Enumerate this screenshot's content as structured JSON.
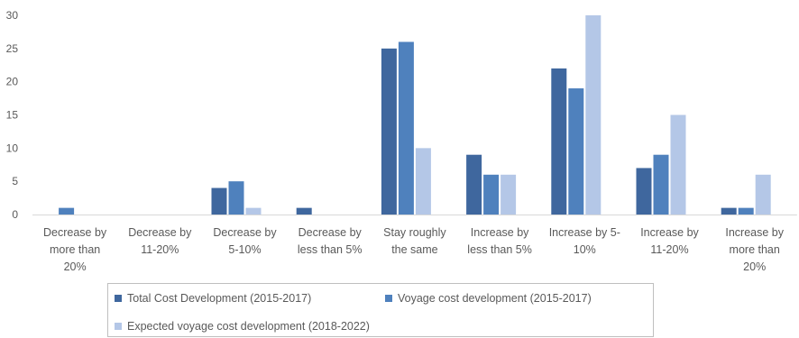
{
  "chart_data": {
    "type": "bar",
    "title": "",
    "xlabel": "",
    "ylabel": "",
    "ylim": [
      0,
      30
    ],
    "yticks": [
      0,
      5,
      10,
      15,
      20,
      25,
      30
    ],
    "grid": false,
    "legend_position": "bottom",
    "categories": [
      [
        "Decrease by",
        "more than",
        "20%"
      ],
      [
        "Decrease by",
        "11-20%"
      ],
      [
        "Decrease by",
        "5-10%"
      ],
      [
        "Decrease by",
        "less than 5%"
      ],
      [
        "Stay roughly",
        "the same"
      ],
      [
        "Increase by",
        "less than 5%"
      ],
      [
        "Increase by 5-",
        "10%"
      ],
      [
        "Increase by",
        "11-20%"
      ],
      [
        "Increase by",
        "more than",
        "20%"
      ]
    ],
    "series": [
      {
        "name": "Total Cost Development (2015-2017)",
        "color": "#3f679e",
        "values": [
          0,
          0,
          4,
          1,
          25,
          9,
          22,
          7,
          1
        ]
      },
      {
        "name": "Voyage cost development (2015-2017)",
        "color": "#4f81bd",
        "values": [
          1,
          0,
          5,
          0,
          26,
          6,
          19,
          9,
          1
        ]
      },
      {
        "name": "Expected voyage cost development (2018-2022)",
        "color": "#b4c7e7",
        "values": [
          0,
          0,
          1,
          0,
          10,
          6,
          30,
          15,
          6
        ]
      }
    ]
  }
}
